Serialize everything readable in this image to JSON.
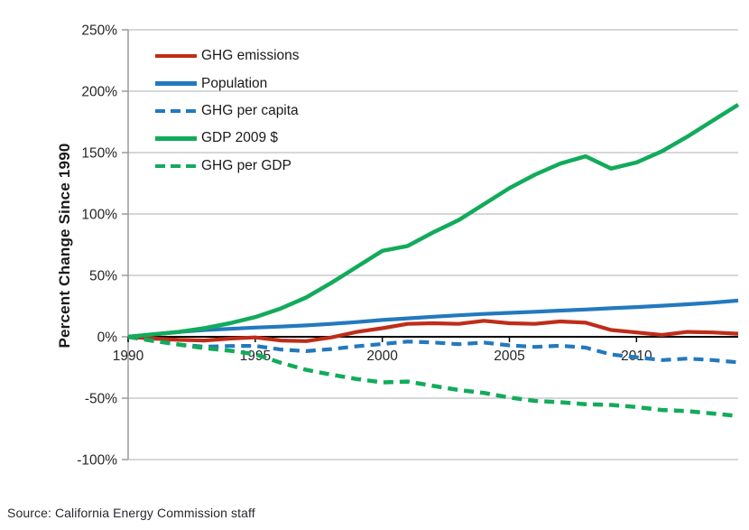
{
  "source": "Source: California Energy Commission staff",
  "chart_data": {
    "type": "line",
    "title": "",
    "xlabel": "",
    "ylabel": "Percent Change Since 1990",
    "x_range": [
      1990,
      2014
    ],
    "ylim": [
      -100,
      250
    ],
    "grid": true,
    "legend_position": "upper-left-inside",
    "y_ticks": [
      {
        "value": 250,
        "label": "250%"
      },
      {
        "value": 200,
        "label": "200%"
      },
      {
        "value": 150,
        "label": "150%"
      },
      {
        "value": 100,
        "label": "100%"
      },
      {
        "value": 50,
        "label": "50%"
      },
      {
        "value": 0,
        "label": "0%"
      },
      {
        "value": -50,
        "label": "-50%"
      },
      {
        "value": -100,
        "label": "-100%"
      }
    ],
    "x_ticks": [
      {
        "value": 1990,
        "label": "1990"
      },
      {
        "value": 1995,
        "label": "1995"
      },
      {
        "value": 2000,
        "label": "2000"
      },
      {
        "value": 2005,
        "label": "2005"
      },
      {
        "value": 2010,
        "label": "2010"
      }
    ],
    "years": [
      1990,
      1991,
      1992,
      1993,
      1994,
      1995,
      1996,
      1997,
      1998,
      1999,
      2000,
      2001,
      2002,
      2003,
      2004,
      2005,
      2006,
      2007,
      2008,
      2009,
      2010,
      2011,
      2012,
      2013,
      2014
    ],
    "series": [
      {
        "name": "GHG emissions",
        "color": "#be2d19",
        "style": "solid",
        "width": 4.2,
        "values": [
          0,
          -1.5,
          -2.5,
          -3,
          -1.5,
          -0.5,
          -3,
          -3.5,
          -0.5,
          4,
          7,
          10.5,
          11,
          10.5,
          13,
          11,
          10.5,
          12.5,
          11.5,
          5.5,
          3.5,
          1.5,
          4,
          3.5,
          2.5
        ]
      },
      {
        "name": "Population",
        "color": "#2379bf",
        "style": "solid",
        "width": 4.2,
        "values": [
          0,
          2,
          4,
          5.5,
          6.5,
          7.5,
          8.3,
          9.3,
          10.5,
          12,
          13.7,
          15,
          16.3,
          17.5,
          18.6,
          19.5,
          20.4,
          21.3,
          22.2,
          23.2,
          24.2,
          25.3,
          26.5,
          27.8,
          29.5
        ]
      },
      {
        "name": "GHG per capita",
        "color": "#2379bf",
        "style": "dashed",
        "width": 4.2,
        "values": [
          0,
          -3.4,
          -6.3,
          -8.1,
          -7.5,
          -7.4,
          -10.4,
          -11.7,
          -10,
          -7.7,
          -5.9,
          -3.9,
          -4.6,
          -6,
          -4.7,
          -7,
          -8.2,
          -7.3,
          -8.8,
          -14.4,
          -16.7,
          -19,
          -17.8,
          -19,
          -20.8
        ]
      },
      {
        "name": "GDP 2009 $",
        "color": "#12ab5b",
        "style": "solid",
        "width": 4.5,
        "values": [
          0,
          2,
          4,
          7,
          11,
          16,
          23,
          32,
          44,
          57,
          70,
          74,
          85,
          95,
          108,
          121,
          132,
          141,
          147,
          137,
          142,
          151,
          163,
          176,
          189
        ]
      },
      {
        "name": "GHG per GDP",
        "color": "#12ab5b",
        "style": "dashed",
        "width": 4.5,
        "values": [
          0,
          -3.4,
          -6.3,
          -9.3,
          -11.3,
          -14.2,
          -21.1,
          -26.9,
          -30.9,
          -34.4,
          -37.1,
          -36.5,
          -40,
          -43.3,
          -45.7,
          -49.5,
          -52.2,
          -53.3,
          -54.9,
          -55.5,
          -57.2,
          -59.6,
          -60.5,
          -62.5,
          -64.5
        ]
      }
    ],
    "colors": {
      "grid": "#bfbfbf",
      "axis_line": "#9a9a9a",
      "zero_line": "#000000",
      "tick_text": "#262626"
    }
  }
}
